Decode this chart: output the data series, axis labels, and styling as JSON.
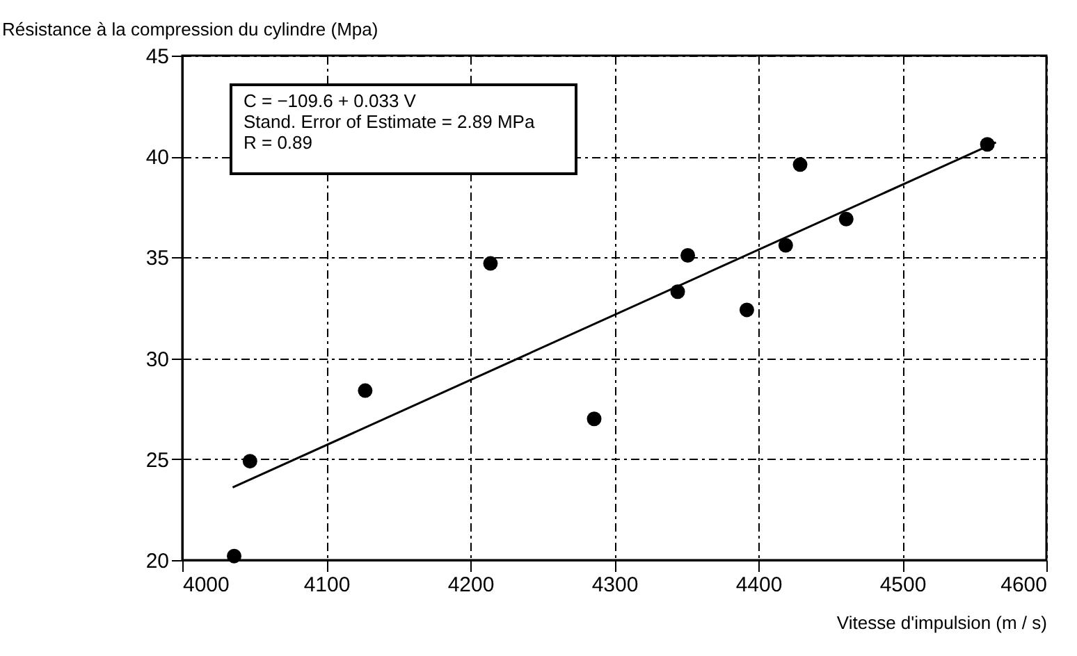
{
  "chart_data": {
    "type": "scatter",
    "xlabel": "Vitesse d'impulsion (m / s)",
    "ylabel": "Résistance à la compression du cylindre (Mpa)",
    "annotations": [
      "C = −109.6 + 0.033 V",
      "Stand. Error of Estimate = 2.89 MPa",
      "R = 0.89"
    ],
    "xlim": [
      4000,
      4600
    ],
    "xticks": [
      4000,
      4100,
      4200,
      4300,
      4400,
      4500,
      4600
    ],
    "ylim": [
      20,
      45
    ],
    "yticks": [
      20,
      25,
      30,
      35,
      40,
      45
    ],
    "grid": true,
    "marker": "circle",
    "series": [
      {
        "color": "#000000",
        "x": [
          4036,
          4047,
          4127,
          4214,
          4286,
          4344,
          4351,
          4392,
          4419,
          4429,
          4461,
          4559
        ],
        "values": [
          20.2,
          24.9,
          28.4,
          34.7,
          27.0,
          33.3,
          35.1,
          32.4,
          35.6,
          39.6,
          36.9,
          40.6
        ]
      },
      {
        "type": "line",
        "color": "#000000",
        "line_style": "solid",
        "marker": "none",
        "x": [
          4035,
          4565
        ],
        "values": [
          23.6,
          40.7
        ]
      }
    ]
  }
}
